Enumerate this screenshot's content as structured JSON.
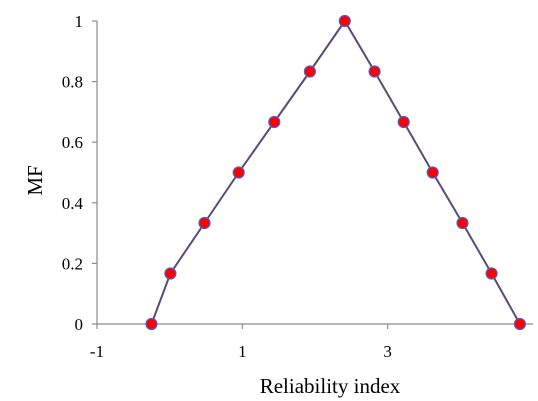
{
  "chart_data": {
    "type": "line",
    "title": "",
    "xlabel": "Reliability index",
    "ylabel": "MF",
    "xlim": [
      -1,
      5.0
    ],
    "ylim": [
      0,
      1
    ],
    "xticks": [
      -1,
      1,
      3
    ],
    "yticks": [
      0,
      0.2,
      0.4,
      0.6,
      0.8,
      1
    ],
    "grid": false,
    "legend": "none",
    "series": [
      {
        "marker": "circle",
        "line_color": "#5a4a78",
        "marker_fill": "#ff0000",
        "marker_edge": "#4a5fd0",
        "x": [
          -0.25,
          0.01,
          0.48,
          0.95,
          1.44,
          1.93,
          2.41,
          2.82,
          3.22,
          3.62,
          4.03,
          4.43,
          4.82
        ],
        "y": [
          0,
          0.1667,
          0.3333,
          0.5,
          0.6667,
          0.8333,
          1,
          0.8333,
          0.6667,
          0.5,
          0.3333,
          0.1667,
          0
        ]
      }
    ]
  }
}
